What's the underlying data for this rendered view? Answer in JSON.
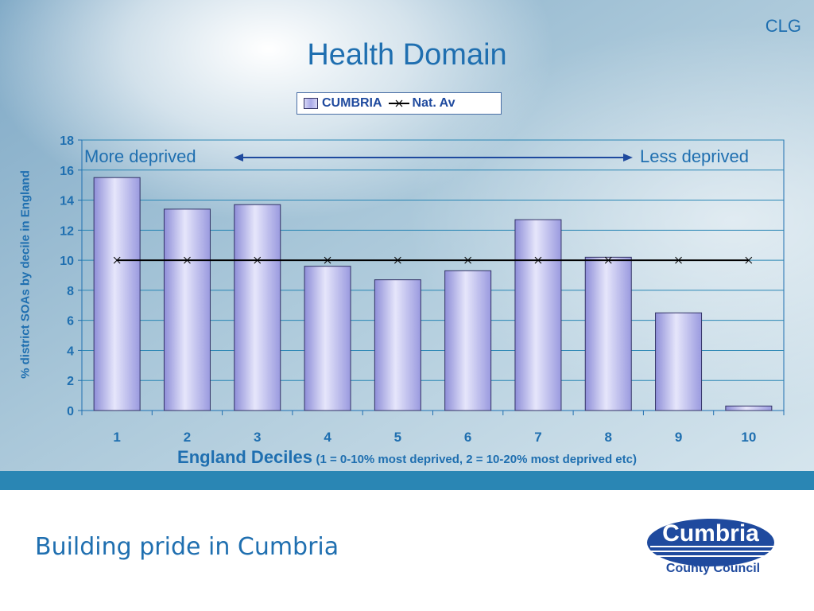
{
  "slide": {
    "corner_label": "CLG",
    "title": "Health Domain",
    "footer_text": "Building pride in Cumbria",
    "logo_text": "Cumbria",
    "logo_subtext": "County Council"
  },
  "annotations": {
    "left": "More deprived",
    "right": "Less deprived"
  },
  "colors": {
    "title": "#1f6fb0",
    "bar": "#b3b3ec",
    "bar_edge": "#333366",
    "line": "#000000",
    "footer_band": "#2a86b4"
  },
  "chart_data": {
    "type": "bar",
    "categories": [
      "1",
      "2",
      "3",
      "4",
      "5",
      "6",
      "7",
      "8",
      "9",
      "10"
    ],
    "series": [
      {
        "name": "CUMBRIA",
        "type": "bar",
        "values": [
          15.5,
          13.4,
          13.7,
          9.6,
          8.7,
          9.3,
          12.7,
          10.2,
          6.5,
          0.3
        ]
      },
      {
        "name": "Nat. Av",
        "type": "line",
        "values": [
          10,
          10,
          10,
          10,
          10,
          10,
          10,
          10,
          10,
          10
        ]
      }
    ],
    "title": "Health Domain",
    "xlabel": "England Deciles",
    "xlabel_note": "(1 = 0-10% most deprived, 2 = 10-20% most deprived etc)",
    "ylabel": "% district SOAs by decile in England",
    "ylim": [
      0,
      18
    ],
    "yticks": [
      "0",
      "2",
      "4",
      "6",
      "8",
      "10",
      "12",
      "14",
      "16",
      "18"
    ],
    "grid": true,
    "legend_position": "top-center"
  }
}
